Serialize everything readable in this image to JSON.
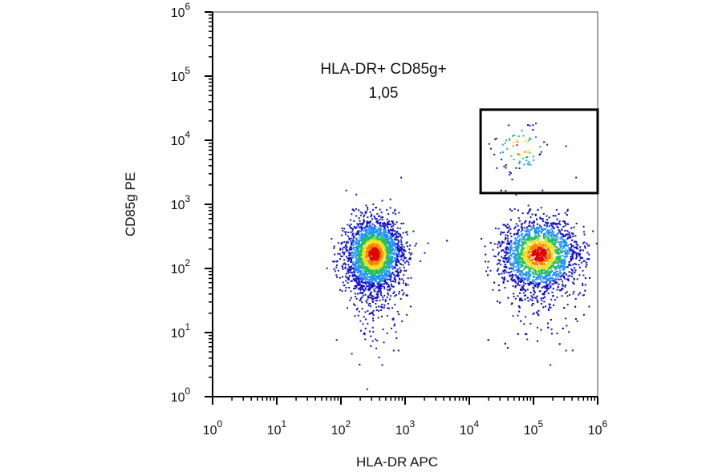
{
  "chart_data": {
    "type": "scatter",
    "subtype": "flow-cytometry-density-dot-plot",
    "xlabel": "HLA-DR APC",
    "ylabel": "CD85g PE",
    "x_scale": "log",
    "y_scale": "log",
    "xlim": [
      1,
      1000000
    ],
    "ylim": [
      1,
      1000000
    ],
    "x_ticks": [
      {
        "base": "10",
        "exp": "0",
        "value": 1
      },
      {
        "base": "10",
        "exp": "1",
        "value": 10
      },
      {
        "base": "10",
        "exp": "2",
        "value": 100
      },
      {
        "base": "10",
        "exp": "3",
        "value": 1000
      },
      {
        "base": "10",
        "exp": "4",
        "value": 10000
      },
      {
        "base": "10",
        "exp": "5",
        "value": 100000
      },
      {
        "base": "10",
        "exp": "6",
        "value": 1000000
      }
    ],
    "y_ticks": [
      {
        "base": "10",
        "exp": "0",
        "value": 1
      },
      {
        "base": "10",
        "exp": "1",
        "value": 10
      },
      {
        "base": "10",
        "exp": "2",
        "value": 100
      },
      {
        "base": "10",
        "exp": "3",
        "value": 1000
      },
      {
        "base": "10",
        "exp": "4",
        "value": 10000
      },
      {
        "base": "10",
        "exp": "5",
        "value": 100000
      },
      {
        "base": "10",
        "exp": "6",
        "value": 1000000
      }
    ],
    "gate": {
      "name": "HLA-DR+ CD85g+",
      "percent": "1,05",
      "x_range": [
        15000,
        1000000
      ],
      "y_range": [
        1500,
        30000
      ]
    },
    "populations": [
      {
        "center_x": 320,
        "center_y": 170,
        "spread_log_x": 0.22,
        "spread_log_y": 0.28,
        "count": 2600
      },
      {
        "center_x": 120000,
        "center_y": 170,
        "spread_log_x": 0.3,
        "spread_log_y": 0.28,
        "count": 3000
      },
      {
        "center_x": 60000,
        "center_y": 8000,
        "spread_log_x": 0.2,
        "spread_log_y": 0.2,
        "count": 80
      }
    ],
    "grid": false,
    "color_scale": [
      "#1010c8",
      "#1e90ff",
      "#20c060",
      "#f0e020",
      "#ff8000",
      "#e00000"
    ]
  }
}
